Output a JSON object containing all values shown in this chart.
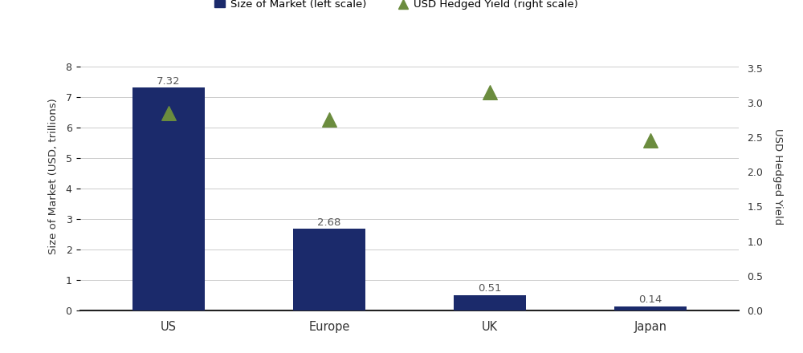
{
  "categories": [
    "US",
    "Europe",
    "UK",
    "Japan"
  ],
  "bar_values": [
    7.32,
    2.68,
    0.51,
    0.14
  ],
  "yield_values": [
    2.85,
    2.75,
    3.15,
    2.45
  ],
  "bar_color": "#1b2a6b",
  "triangle_color": "#6b8c3e",
  "left_ylabel": "Size of Market (USD, trillions)",
  "right_ylabel": "USD Hedged Yield",
  "left_ylim": [
    0,
    8.8
  ],
  "right_ylim": [
    0,
    3.867
  ],
  "left_yticks": [
    0,
    1,
    2,
    3,
    4,
    5,
    6,
    7,
    8
  ],
  "right_yticks": [
    0.0,
    0.5,
    1.0,
    1.5,
    2.0,
    2.5,
    3.0,
    3.5
  ],
  "legend_bar_label": "Size of Market (left scale)",
  "legend_triangle_label": "USD Hedged Yield (right scale)",
  "bar_labels": [
    "7.32",
    "2.68",
    "0.51",
    "0.14"
  ],
  "background_color": "#ffffff",
  "grid_color": "#cccccc",
  "bar_width": 0.45,
  "xlim": [
    -0.55,
    3.55
  ]
}
